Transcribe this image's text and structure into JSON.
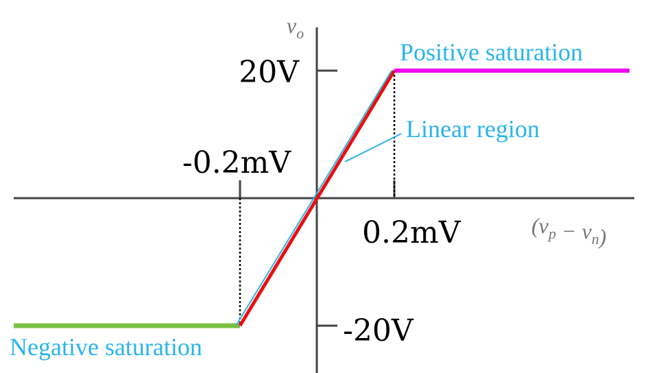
{
  "y_axis": {
    "label": [
      {
        "text": "v"
      },
      {
        "text": "o",
        "sub": true
      }
    ],
    "ticks": [
      "20V",
      "-20V"
    ]
  },
  "x_axis": {
    "label": [
      {
        "text": "("
      },
      {
        "text": "v"
      },
      {
        "text": "p",
        "sub": true
      },
      {
        "text": " − "
      },
      {
        "text": "v"
      },
      {
        "text": "n",
        "sub": true
      },
      {
        "text": ")"
      }
    ],
    "ticks": [
      "-0.2mV",
      "0.2mV"
    ]
  },
  "annotations": {
    "positive": "Positive saturation",
    "linear": "Linear region",
    "negative": "Negative saturation"
  }
}
